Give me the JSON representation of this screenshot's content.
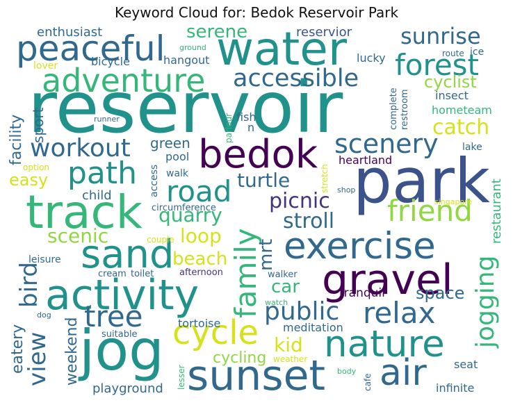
{
  "title": "Keyword Cloud for: Bedok Reservoir Park",
  "palette": {
    "purple": "#440154",
    "indigo": "#3b528b",
    "blue": "#31688e",
    "teal": "#21918c",
    "green": "#35b779",
    "lime": "#90d743",
    "yellow": "#d5e21a",
    "slate": "#46337e"
  },
  "words": {
    "reservoir": "reservoir",
    "park": "park",
    "water": "water",
    "jog": "jog",
    "track": "track",
    "activity": "activity",
    "sunset": "sunset",
    "nature": "nature",
    "exercise": "exercise",
    "gravel": "gravel",
    "peaceful": "peaceful",
    "adventure": "adventure",
    "bedok": "bedok",
    "sand": "sand",
    "path": "path",
    "forest": "forest",
    "sunrise": "sunrise",
    "accessible": "accessible",
    "scenery": "scenery",
    "workout": "workout",
    "road": "road",
    "friend": "friend",
    "family": "family",
    "cycle": "cycle",
    "air": "air",
    "jogging": "jogging",
    "relax": "relax",
    "tree": "tree",
    "view": "view",
    "bird": "bird",
    "public": "public",
    "stroll": "stroll",
    "picnic": "picnic",
    "catch": "catch",
    "serene": "serene",
    "quarry": "quarry",
    "turtle": "turtle",
    "mrt": "mrt",
    "loop": "loop",
    "scenic": "scenic",
    "beach": "beach",
    "car": "car",
    "kid": "kid",
    "space": "space",
    "cycling": "cycling",
    "easy": "easy",
    "sport": "sport",
    "facility": "facility",
    "eatery": "eatery",
    "weekend": "weekend",
    "cyclist": "cyclist",
    "enthusiast": "enthusiast",
    "reservior": "reservior",
    "bicycle": "bicycle",
    "hangout": "hangout",
    "lucky": "lucky",
    "lover": "lover",
    "ground": "ground",
    "route": "route",
    "ice": "ice",
    "green": "green",
    "child": "child",
    "pool": "pool",
    "walk": "walk",
    "access": "access",
    "heartland": "heartland",
    "restaurant": "restaurant",
    "lake": "lake",
    "insect": "insect",
    "hometeam": "hometeam",
    "complete": "complete",
    "restroom": "restroom",
    "runner": "runner",
    "fish": "fish",
    "n": "n",
    "parlour": "parlour",
    "stretch": "stretch",
    "shop": "shop",
    "singapore": "singapore",
    "option": "option",
    "circumference": "circumference",
    "couple": "couple",
    "leisure": "leisure",
    "cream": "cream",
    "toilet": "toilet",
    "afternoon": "afternoon",
    "walker": "walker",
    "tranquil": "tranquil",
    "watch": "watch",
    "meditation": "meditation",
    "tortoise": "tortoise",
    "dog": "dog",
    "suitable": "suitable",
    "weather": "weather",
    "seat": "seat",
    "lesser": "lesser",
    "playground": "playground",
    "body": "body",
    "cafe": "cafe",
    "infinite": "infinite"
  }
}
